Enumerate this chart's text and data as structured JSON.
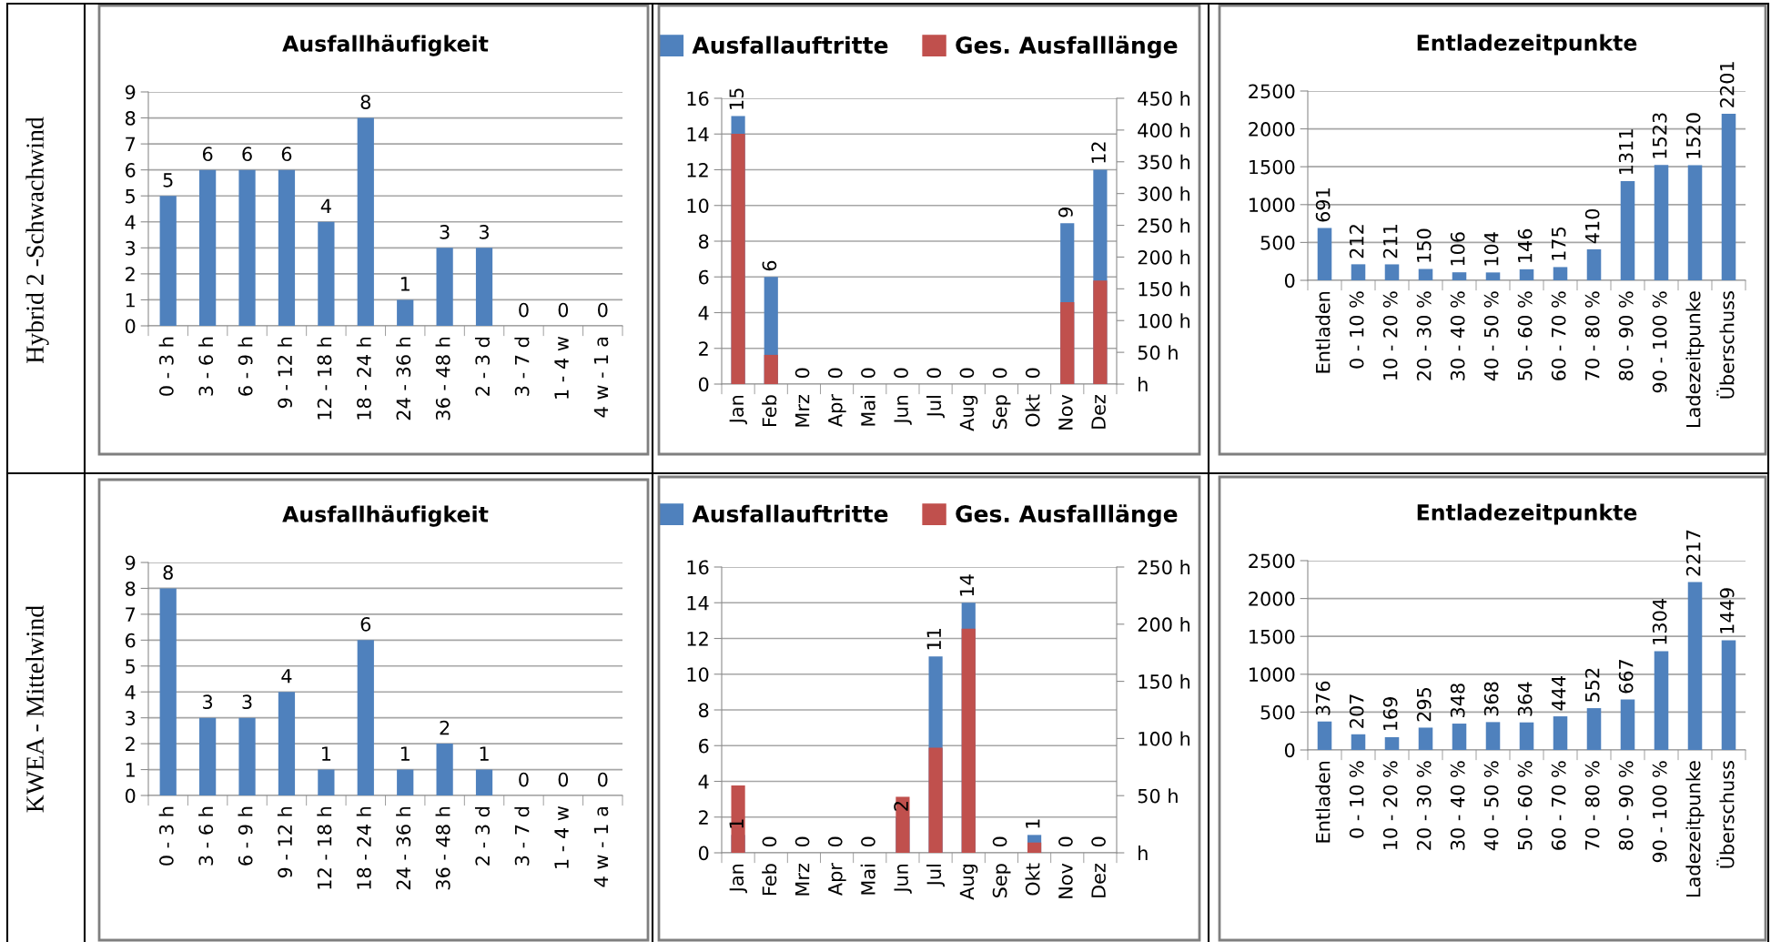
{
  "chart_data": [
    {
      "type": "bar",
      "title": "Ausfallhäufigkeit",
      "annotations": [
        "Hybrid 2 -Schwachwind"
      ],
      "categories": [
        "0 - 3 h",
        "3 - 6 h",
        "6 - 9 h",
        "9 - 12 h",
        "12 - 18 h",
        "18 - 24 h",
        "24 - 36 h",
        "36 - 48 h",
        "2 - 3 d",
        "3 - 7 d",
        "1 - 4 w",
        "4 w - 1 a"
      ],
      "values": [
        5,
        6,
        6,
        6,
        4,
        8,
        1,
        3,
        3,
        0,
        0,
        0
      ],
      "color": "#4f81bd",
      "ylim": [
        0,
        9
      ],
      "yticks": [
        0,
        1,
        2,
        3,
        4,
        5,
        6,
        7,
        8,
        9
      ],
      "grid": "y",
      "data_labels": true
    },
    {
      "type": "bar",
      "categories": [
        "Jan",
        "Feb",
        "Mrz",
        "Apr",
        "Mai",
        "Jun",
        "Jul",
        "Aug",
        "Sep",
        "Okt",
        "Nov",
        "Dez"
      ],
      "series": [
        {
          "name": "Ausfallauftritte",
          "color": "#4f81bd",
          "values": [
            15,
            6,
            0,
            0,
            0,
            0,
            0,
            0,
            0,
            0,
            9,
            12
          ],
          "value_labels": [
            "15",
            "6",
            "0",
            "0",
            "0",
            "0",
            "0",
            "0",
            "0",
            "0",
            "9",
            "12"
          ]
        },
        {
          "name": "Ges. Ausfalllänge",
          "color": "#c0504d",
          "axis": "y2",
          "values": [
            394,
            46,
            0,
            0,
            0,
            0,
            0,
            0,
            0,
            0,
            129,
            163
          ]
        }
      ],
      "ylim": [
        0,
        16
      ],
      "yticks": [
        0,
        2,
        4,
        6,
        8,
        10,
        12,
        14,
        16
      ],
      "y2lim": [
        0,
        450
      ],
      "y2ticks": [
        {
          "value": 0,
          "label": "h"
        },
        {
          "value": 50,
          "label": "50 h"
        },
        {
          "value": 100,
          "label": "100 h"
        },
        {
          "value": 150,
          "label": "150 h"
        },
        {
          "value": 200,
          "label": "200 h"
        },
        {
          "value": 250,
          "label": "250 h"
        },
        {
          "value": 300,
          "label": "300 h"
        },
        {
          "value": 350,
          "label": "350 h"
        },
        {
          "value": 400,
          "label": "400 h"
        },
        {
          "value": 450,
          "label": "450 h"
        }
      ],
      "grid": "y",
      "legend": "top"
    },
    {
      "type": "bar",
      "title": "Entladezeitpunkte",
      "categories": [
        "Entladen",
        "0 - 10 %",
        "10 - 20 %",
        "20 - 30 %",
        "30 - 40 %",
        "40 - 50 %",
        "50 - 60 %",
        "60 - 70 %",
        "70 - 80 %",
        "80 - 90 %",
        "90 - 100 %",
        "Ladezeitpunke",
        "Überschuss"
      ],
      "values": [
        691,
        212,
        211,
        150,
        106,
        104,
        146,
        175,
        410,
        1311,
        1523,
        1520,
        2201
      ],
      "color": "#4f81bd",
      "ylim": [
        0,
        2500
      ],
      "yticks": [
        0,
        500,
        1000,
        1500,
        2000,
        2500
      ],
      "grid": "y",
      "data_labels": true
    },
    {
      "type": "bar",
      "title": "Ausfallhäufigkeit",
      "annotations": [
        "KWEA - Mittelwind"
      ],
      "categories": [
        "0 - 3 h",
        "3 - 6 h",
        "6 - 9 h",
        "9 - 12 h",
        "12 - 18 h",
        "18 - 24 h",
        "24 - 36 h",
        "36 - 48 h",
        "2 - 3 d",
        "3 - 7 d",
        "1 - 4 w",
        "4 w - 1 a"
      ],
      "values": [
        8,
        3,
        3,
        4,
        1,
        6,
        1,
        2,
        1,
        0,
        0,
        0
      ],
      "color": "#4f81bd",
      "ylim": [
        0,
        9
      ],
      "yticks": [
        0,
        1,
        2,
        3,
        4,
        5,
        6,
        7,
        8,
        9
      ],
      "grid": "y",
      "data_labels": true
    },
    {
      "type": "bar",
      "categories": [
        "Jan",
        "Feb",
        "Mrz",
        "Apr",
        "Mai",
        "Jun",
        "Jul",
        "Aug",
        "Sep",
        "Okt",
        "Nov",
        "Dez"
      ],
      "series": [
        {
          "name": "Ausfallauftritte",
          "color": "#4f81bd",
          "values": [
            1,
            0,
            0,
            0,
            0,
            2,
            11,
            14,
            0,
            1,
            0,
            0
          ],
          "value_labels": [
            "1",
            "0",
            "0",
            "0",
            "0",
            "2",
            "11",
            "14",
            "0",
            "1",
            "0",
            "0"
          ]
        },
        {
          "name": "Ges. Ausfalllänge",
          "color": "#c0504d",
          "axis": "y2",
          "values": [
            59,
            0,
            0,
            0,
            0,
            49,
            92,
            196,
            0,
            9,
            0,
            0
          ]
        }
      ],
      "ylim": [
        0,
        16
      ],
      "yticks": [
        0,
        2,
        4,
        6,
        8,
        10,
        12,
        14,
        16
      ],
      "y2lim": [
        0,
        250
      ],
      "y2ticks": [
        {
          "value": 0,
          "label": "h"
        },
        {
          "value": 50,
          "label": "50 h"
        },
        {
          "value": 100,
          "label": "100 h"
        },
        {
          "value": 150,
          "label": "150 h"
        },
        {
          "value": 200,
          "label": "200 h"
        },
        {
          "value": 250,
          "label": "250 h"
        }
      ],
      "grid": "y",
      "legend": "top"
    },
    {
      "type": "bar",
      "title": "Entladezeitpunkte",
      "categories": [
        "Entladen",
        "0 - 10 %",
        "10 - 20 %",
        "20 - 30 %",
        "30 - 40 %",
        "40 - 50 %",
        "50 - 60 %",
        "60 - 70 %",
        "70 - 80 %",
        "80 - 90 %",
        "90 - 100 %",
        "Ladezeitpunke",
        "Überschuss"
      ],
      "values": [
        376,
        207,
        169,
        295,
        348,
        368,
        364,
        444,
        552,
        667,
        1304,
        2217,
        1449
      ],
      "color": "#4f81bd",
      "ylim": [
        0,
        2500
      ],
      "yticks": [
        0,
        500,
        1000,
        1500,
        2000,
        2500
      ],
      "grid": "y",
      "data_labels": true
    }
  ]
}
